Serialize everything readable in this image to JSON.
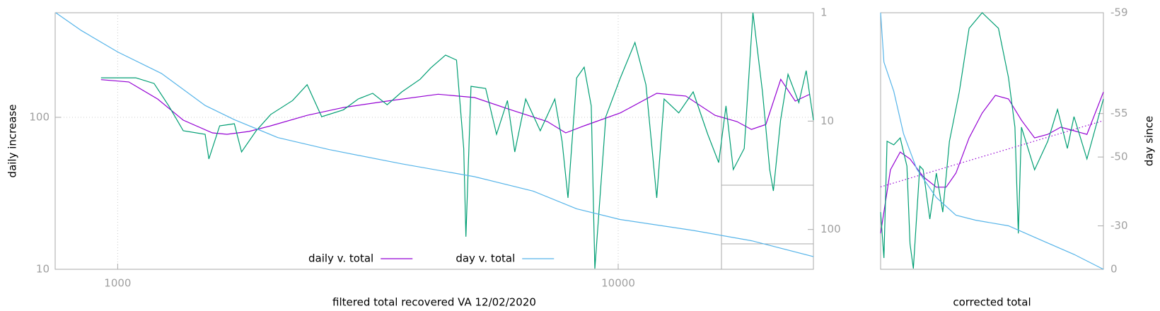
{
  "chart_data": [
    {
      "type": "line",
      "xlabel": "filtered total recovered VA 12/02/2020",
      "ylabel": "daily increase",
      "xlog": true,
      "ylog": true,
      "y2log": true,
      "xlim": [
        750,
        24550
      ],
      "ylim": [
        10,
        488
      ],
      "y2lim": [
        233,
        1
      ],
      "xticks": [
        1000,
        10000
      ],
      "yticks": [
        10,
        100
      ],
      "y2ticks": [
        1,
        10,
        100
      ],
      "grid": true,
      "legend": "bottom center",
      "series": [
        {
          "name": "daily v. total",
          "color": "#9400d3",
          "x": [
            926,
            1052,
            1202,
            1352,
            1546,
            1653,
            1828,
            2022,
            2390,
            2825,
            3455,
            4368,
            5164,
            6105,
            7220,
            7855,
            8550,
            10100,
            11940,
            13650,
            15620,
            17270,
            18460,
            19730,
            21120,
            22580,
            24150
          ],
          "values": [
            177,
            171,
            132,
            95.8,
            79,
            77.3,
            80.7,
            87.9,
            103,
            116,
            128,
            142,
            135,
            112,
            93.8,
            79,
            87.9,
            107,
            144,
            138,
            103,
            93.8,
            83.3,
            89.8,
            178,
            128,
            142
          ]
        },
        {
          "color": "#009e73",
          "x": [
            926,
            1087,
            1182,
            1265,
            1352,
            1495,
            1521,
            1599,
            1710,
            1768,
            1891,
            2022,
            2236,
            2390,
            2556,
            2825,
            3022,
            3232,
            3455,
            3696,
            4019,
            4226,
            4519,
            4753,
            4913,
            4963,
            5081,
            5434,
            5713,
            6007,
            6214,
            6534,
            6987,
            7471,
            7726,
            7937,
            8261,
            8550,
            8834,
            8983,
            9447,
            10100,
            10800,
            11360,
            11940,
            12350,
            13210,
            14120,
            15100,
            15880,
            16420,
            16980,
            17860,
            18590,
            19420,
            20080,
            20420,
            21110,
            21840,
            22960,
            23750,
            24550
          ],
          "values": [
            182,
            182,
            167,
            119,
            81.6,
            77.3,
            53.2,
            87.9,
            90.7,
            59.2,
            81.6,
            104.5,
            129,
            164,
            101,
            112,
            132,
            144,
            121,
            147,
            178,
            212,
            257,
            238,
            62.4,
            16.4,
            160,
            155,
            77.3,
            129,
            59.2,
            132,
            81.6,
            132,
            69.5,
            29.5,
            182,
            214,
            119,
            10.1,
            101,
            182,
            311,
            164,
            29.5,
            132,
            107,
            147,
            77.3,
            50.4,
            119,
            45.3,
            62.4,
            488,
            147,
            45.3,
            32.8,
            95.8,
            192,
            125,
            203,
            95.8
          ]
        },
        {
          "name": "day v. total",
          "color": "#56b4e9",
          "axis": "y2",
          "x": [
            752,
            846,
            1000,
            1223,
            1495,
            1710,
            2090,
            2643,
            3696,
            5166,
            6756,
            8261,
            10100,
            14120,
            18470,
            24550
          ],
          "values": [
            1,
            1.46,
            2.3,
            3.63,
            7.17,
            9.7,
            14.2,
            18.3,
            24.8,
            32.6,
            44.2,
            64.4,
            80.9,
            102,
            127,
            178
          ]
        }
      ]
    },
    {
      "type": "line",
      "xlabel": "corrected total",
      "y2label": "day since",
      "xlim": [
        0,
        100
      ],
      "ylim": [
        0,
        100
      ],
      "y2lim": [
        0,
        -59
      ],
      "y2log": true,
      "y2log_shift": 60,
      "y2ticks": [
        -59,
        -55,
        -50,
        -30,
        0
      ],
      "series": [
        {
          "color": "#9400d3",
          "x": [
            0,
            4.4,
            8.8,
            13.2,
            19.1,
            25,
            29.4,
            33.8,
            39.7,
            45.6,
            51.5,
            57.4,
            63.2,
            69.1,
            75,
            80.9,
            86.8,
            92.6,
            100
          ],
          "values": [
            14,
            38.8,
            45.7,
            43,
            36.1,
            32,
            32,
            37.5,
            51.2,
            60.9,
            67.8,
            66.4,
            58.1,
            51.2,
            52.6,
            55.4,
            54,
            52.6,
            69.1
          ]
        },
        {
          "color": "#009e73",
          "x": [
            0,
            1.5,
            2.9,
            5.9,
            8.8,
            11.8,
            13.2,
            14.7,
            17.6,
            19.1,
            22.1,
            25,
            27.9,
            30.9,
            35.3,
            39.7,
            45.6,
            52.9,
            57.4,
            60.3,
            61.8,
            63.2,
            69.1,
            75,
            79.4,
            83.8,
            86.8,
            92.6,
            100
          ],
          "values": [
            22.3,
            4.4,
            49.9,
            48.5,
            51.2,
            40.2,
            9.9,
            0.3,
            40.2,
            38.8,
            19.6,
            37.5,
            22.3,
            49.9,
            69.1,
            93.9,
            100,
            93.9,
            74.7,
            55.4,
            14,
            55.4,
            38.8,
            49.9,
            62.3,
            47.1,
            59.5,
            43,
            66.4
          ]
        },
        {
          "color": "#56b4e9",
          "axis": "y2",
          "x": [
            0,
            1.5,
            5.9,
            10.3,
            16.2,
            25,
            33.8,
            42.6,
            57.4,
            72.1,
            86.8,
            100
          ],
          "values": [
            -59,
            -57.8,
            -56.5,
            -53.1,
            -47.9,
            -40.9,
            -34.7,
            -32.6,
            -30,
            -22.3,
            -12.7,
            0
          ]
        },
        {
          "color": "#9400d3",
          "axis": "y2",
          "dash": "dotted",
          "x": [
            0,
            100
          ],
          "values": [
            -43.9,
            -54.4
          ]
        }
      ]
    }
  ]
}
